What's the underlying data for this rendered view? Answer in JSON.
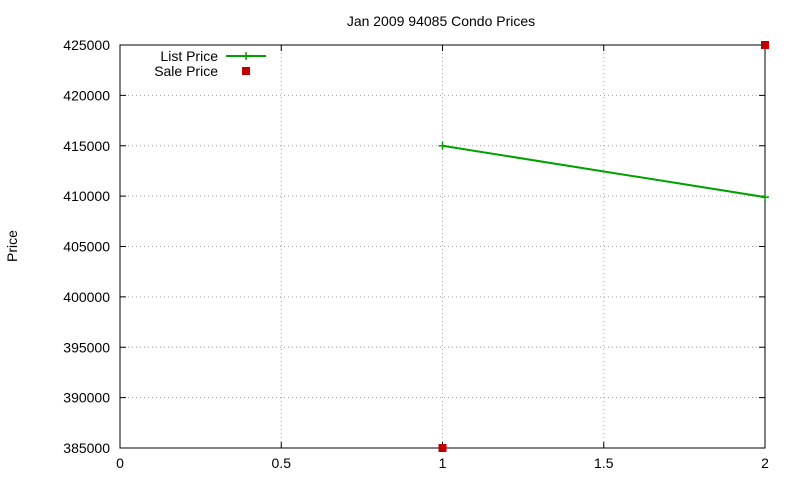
{
  "chart_data": {
    "type": "line",
    "title": "Jan 2009 94085 Condo Prices",
    "xlabel": "",
    "ylabel": "Price",
    "xlim": [
      0,
      2
    ],
    "ylim": [
      385000,
      425000
    ],
    "xticks": [
      0,
      0.5,
      1,
      1.5,
      2
    ],
    "xtick_labels": [
      "0",
      "0.5",
      "1",
      "1.5",
      "2"
    ],
    "yticks": [
      385000,
      390000,
      395000,
      400000,
      405000,
      410000,
      415000,
      420000,
      425000
    ],
    "ytick_labels": [
      "385000",
      "390000",
      "395000",
      "400000",
      "405000",
      "410000",
      "415000",
      "420000",
      "425000"
    ],
    "grid": true,
    "legend_position": "top-left",
    "series": [
      {
        "name": "List Price",
        "style": "line+cross",
        "color": "#00a000",
        "x": [
          1,
          2
        ],
        "y": [
          415000,
          409900
        ]
      },
      {
        "name": "Sale Price",
        "style": "square",
        "color": "#c00000",
        "x": [
          1,
          2
        ],
        "y": [
          385000,
          425000
        ]
      }
    ]
  }
}
